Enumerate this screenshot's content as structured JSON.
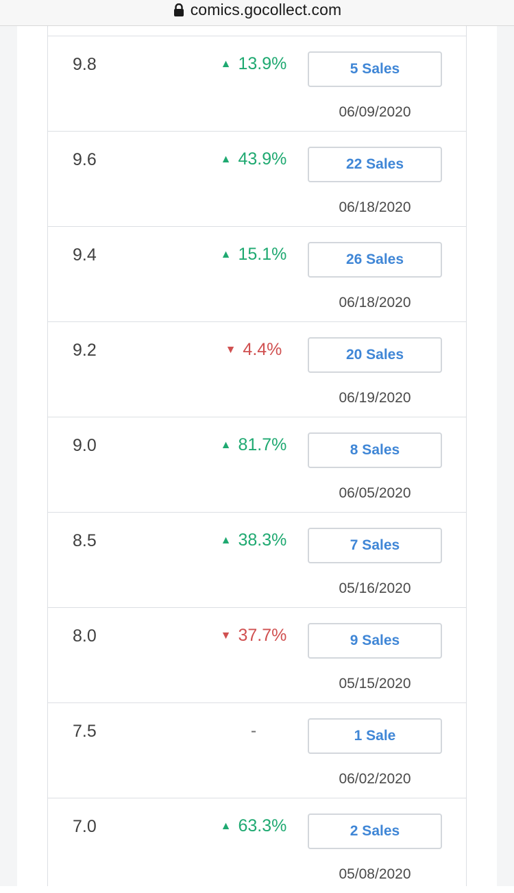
{
  "browser": {
    "url": "comics.gocollect.com"
  },
  "rows": [
    {
      "grade": "9.8",
      "direction": "up",
      "change": "13.9%",
      "sales": "5 Sales",
      "date": "06/09/2020"
    },
    {
      "grade": "9.6",
      "direction": "up",
      "change": "43.9%",
      "sales": "22 Sales",
      "date": "06/18/2020"
    },
    {
      "grade": "9.4",
      "direction": "up",
      "change": "15.1%",
      "sales": "26 Sales",
      "date": "06/18/2020"
    },
    {
      "grade": "9.2",
      "direction": "down",
      "change": "4.4%",
      "sales": "20 Sales",
      "date": "06/19/2020"
    },
    {
      "grade": "9.0",
      "direction": "up",
      "change": "81.7%",
      "sales": "8 Sales",
      "date": "06/05/2020"
    },
    {
      "grade": "8.5",
      "direction": "up",
      "change": "38.3%",
      "sales": "7 Sales",
      "date": "05/16/2020"
    },
    {
      "grade": "8.0",
      "direction": "down",
      "change": "37.7%",
      "sales": "9 Sales",
      "date": "05/15/2020"
    },
    {
      "grade": "7.5",
      "direction": "none",
      "change": "-",
      "sales": "1 Sale",
      "date": "06/02/2020"
    },
    {
      "grade": "7.0",
      "direction": "up",
      "change": "63.3%",
      "sales": "2 Sales",
      "date": "05/08/2020"
    }
  ],
  "colors": {
    "up": "#1fa971",
    "down": "#d05050",
    "link": "#3f86d6"
  },
  "icons": {
    "up": "triangle-up-icon",
    "down": "triangle-down-icon",
    "lock": "lock-icon"
  }
}
